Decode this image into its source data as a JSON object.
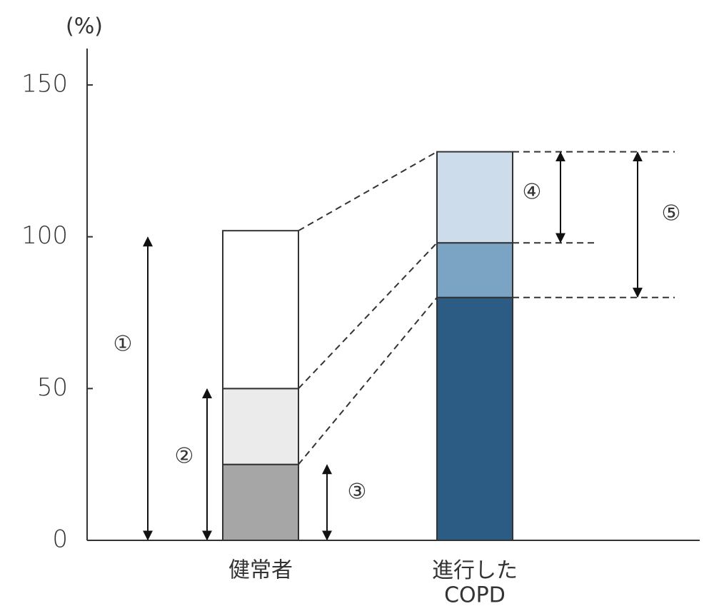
{
  "chart_data": {
    "type": "stacked-bar",
    "y_label": "(%)",
    "categories": [
      "健常者",
      "進行した\nCOPD"
    ],
    "series": [
      {
        "colors": [
          "#a6a6a6",
          "#2c5b84"
        ],
        "values": [
          25,
          80
        ]
      },
      {
        "colors": [
          "#ebebeb",
          "#7ba3c4"
        ],
        "values": [
          25,
          18
        ]
      },
      {
        "colors": [
          "#ffffff",
          "#cddcea"
        ],
        "values": [
          52,
          30
        ]
      }
    ],
    "ylim": [
      0,
      162
    ],
    "yticks": [
      0,
      50,
      100,
      150
    ],
    "annotations": [
      {
        "label": "①",
        "from": 0,
        "to": 100
      },
      {
        "label": "②",
        "from": 0,
        "to": 50
      },
      {
        "label": "③",
        "from": 0,
        "to": 25
      },
      {
        "label": "④",
        "from": 98,
        "to": 128
      },
      {
        "label": "⑤",
        "from": 80,
        "to": 128
      }
    ]
  }
}
